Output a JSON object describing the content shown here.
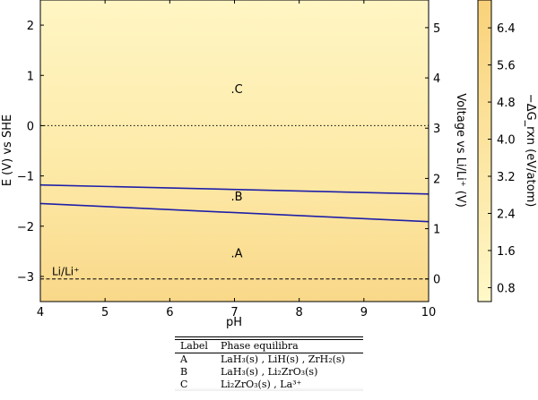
{
  "chart_data": {
    "type": "area",
    "xlabel": "pH",
    "ylabel_left": "E (V) vs SHE",
    "ylabel_right": "Voltage vs Li/Li⁺ (V)",
    "xlim": [
      4,
      10
    ],
    "ylim_left": [
      -3.5,
      2.5
    ],
    "ylim_right": [
      -0.45,
      5.55
    ],
    "x_ticks": [
      "4",
      "5",
      "6",
      "7",
      "8",
      "9",
      "10"
    ],
    "y_ticks_left": [
      "−3",
      "−2",
      "−1",
      "0",
      "1",
      "2"
    ],
    "y_ticks_right": [
      "0",
      "1",
      "2",
      "3",
      "4",
      "5"
    ],
    "colorbar": {
      "label": "−ΔG_rxn (eV/atom)",
      "range": [
        0.5,
        7.0
      ],
      "ticks": [
        "0.8",
        "1.6",
        "2.4",
        "3.2",
        "4.0",
        "4.8",
        "5.6",
        "6.4"
      ],
      "color_low": "#fff8c8",
      "color_high": "#f9d27a"
    },
    "boundaries": [
      {
        "x": [
          4,
          10
        ],
        "y": [
          -1.18,
          -1.36
        ],
        "color": "#1f1fa8"
      },
      {
        "x": [
          4,
          10
        ],
        "y": [
          -1.55,
          -1.91
        ],
        "color": "#1f1fa8"
      }
    ],
    "reference_lines": [
      {
        "y": 0.0,
        "style": "dotted",
        "label": ""
      },
      {
        "y": -3.05,
        "style": "dashed",
        "label": "Li/Li⁺"
      }
    ],
    "regions": [
      {
        "label": "C",
        "x": 7.0,
        "y": 0.72
      },
      {
        "label": "B",
        "x": 7.0,
        "y": -1.42
      },
      {
        "label": "A",
        "x": 7.0,
        "y": -2.55
      }
    ],
    "legend_table": {
      "headers": [
        "Label",
        "Phase equilibra"
      ],
      "rows": [
        [
          "A",
          "LaH₃(s) , LiH(s) , ZrH₂(s)"
        ],
        [
          "B",
          "LaH₃(s) , Li₂ZrO₃(s)"
        ],
        [
          "C",
          "Li₂ZrO₃(s) , La³⁺"
        ]
      ]
    }
  }
}
